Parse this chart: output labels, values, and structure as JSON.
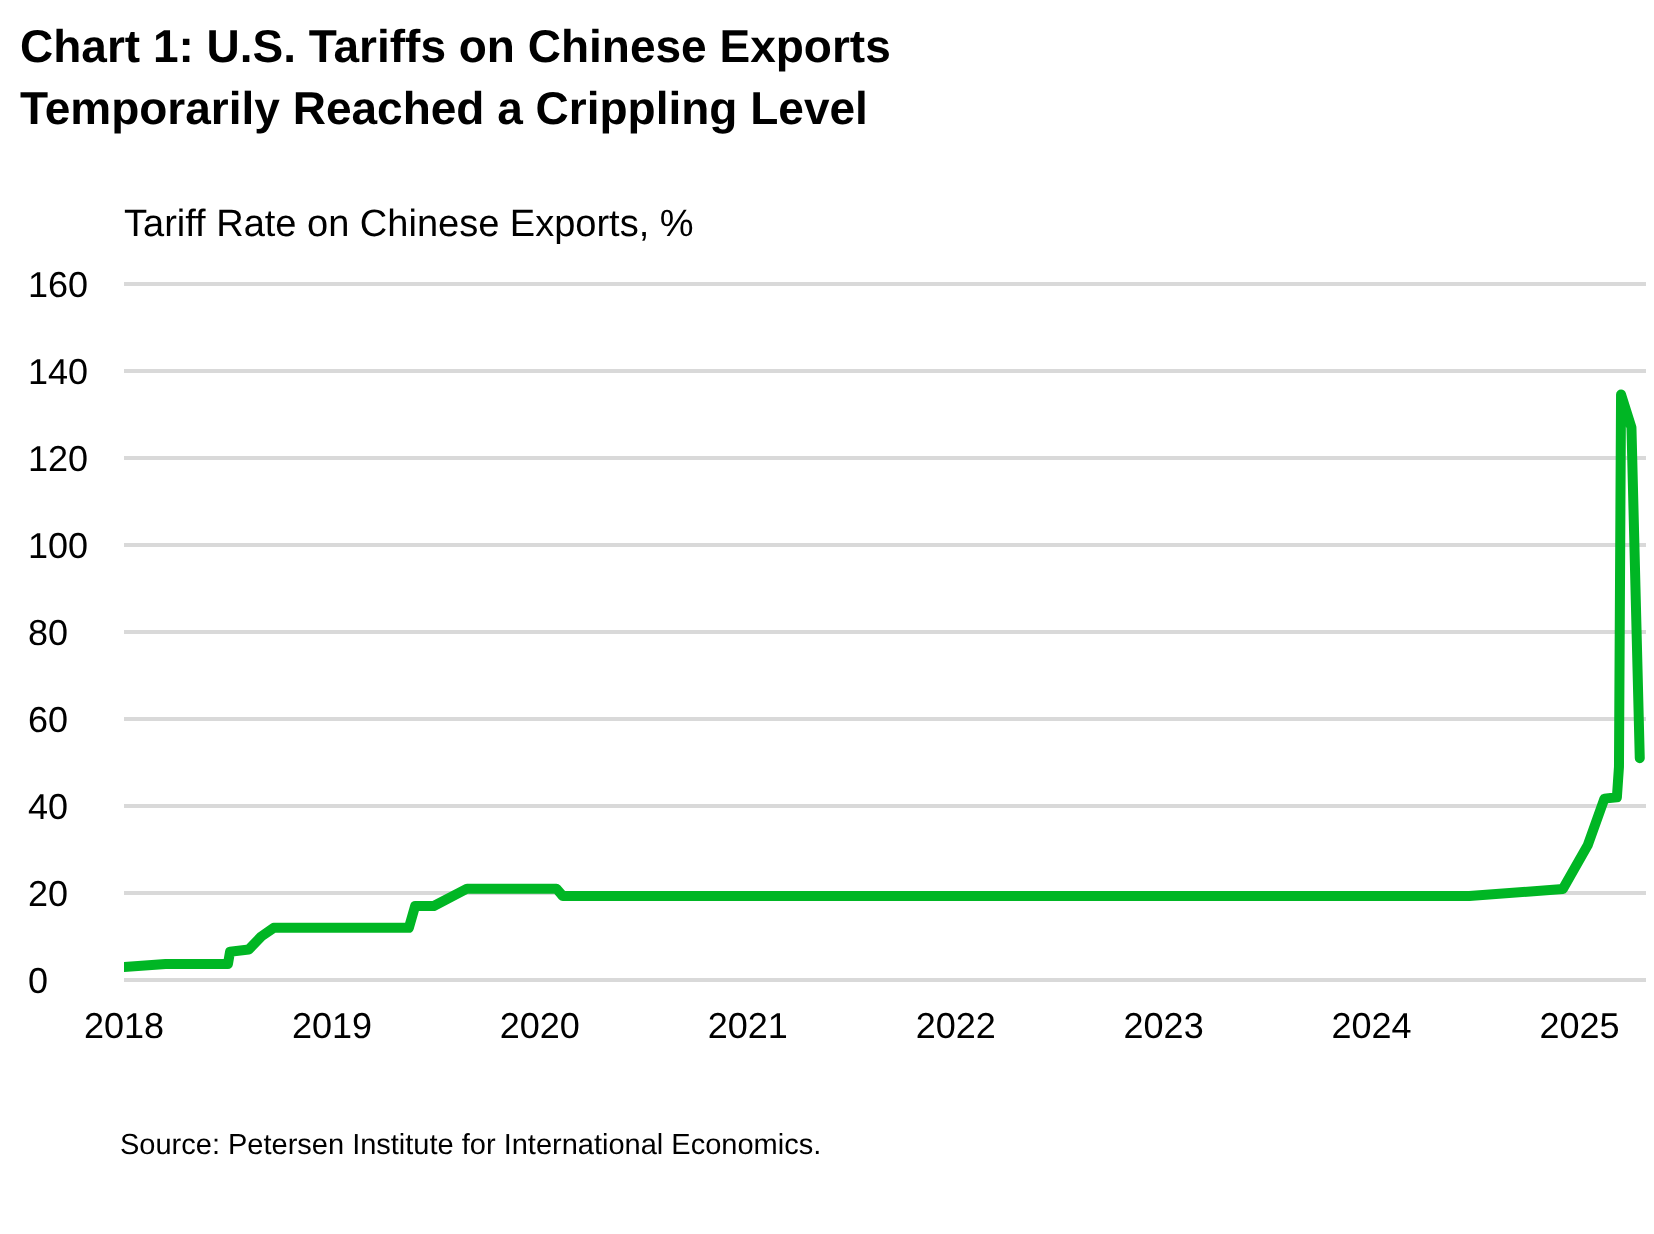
{
  "chart_data": {
    "type": "line",
    "title": "Chart 1: U.S. Tariffs on Chinese Exports\nTemporarily Reached a Crippling Level",
    "ylabel": "Tariff Rate on Chinese Exports, %",
    "annotations": [
      "Source: Petersen Institute for International Economics."
    ],
    "x": [
      2018.0,
      2018.2,
      2018.5,
      2018.51,
      2018.6,
      2018.66,
      2018.72,
      2019.37,
      2019.4,
      2019.49,
      2019.65,
      2020.08,
      2020.11,
      2024.47,
      2024.92,
      2025.04,
      2025.12,
      2025.18,
      2025.19,
      2025.2,
      2025.25,
      2025.29
    ],
    "series": [
      {
        "color": "#00b624",
        "values": [
          3,
          3.7,
          3.7,
          6.5,
          7,
          10,
          12,
          12,
          17,
          17,
          21,
          21,
          19.3,
          19.3,
          20.9,
          31,
          41.7,
          42,
          49,
          134.6,
          127,
          51
        ]
      }
    ],
    "xlim": [
      2018,
      2025.32
    ],
    "xticks": [
      2018,
      2019,
      2020,
      2021,
      2022,
      2023,
      2024,
      2025
    ],
    "ylim": [
      0,
      160
    ],
    "yticks": [
      0,
      20,
      40,
      60,
      80,
      100,
      120,
      140,
      160
    ],
    "grid": "y",
    "legend": false,
    "marker": "none",
    "line_style": "solid"
  }
}
